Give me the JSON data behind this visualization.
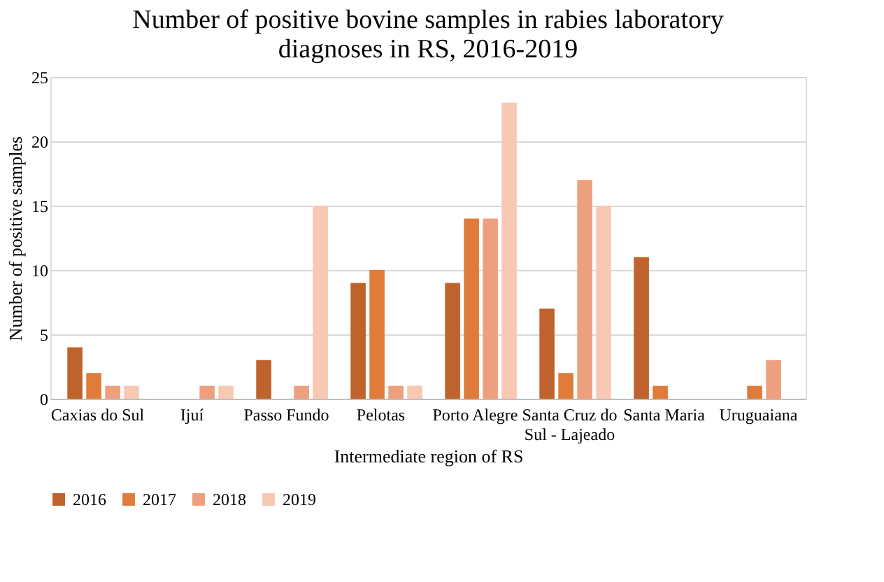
{
  "chart_data": {
    "type": "bar",
    "title": "Number of positive bovine samples in rabies laboratory diagnoses in RS, 2016-2019",
    "xlabel": "Intermediate region of RS",
    "ylabel": "Number of positive samples",
    "categories": [
      "Caxias do Sul",
      "Ijuí",
      "Passo Fundo",
      "Pelotas",
      "Porto Alegre",
      "Santa Cruz do Sul - Lajeado",
      "Santa Maria",
      "Uruguaiana"
    ],
    "series": [
      {
        "name": "2016",
        "color": "#c0622b",
        "values": [
          4,
          0,
          3,
          9,
          9,
          7,
          11,
          0
        ]
      },
      {
        "name": "2017",
        "color": "#e07b39",
        "values": [
          2,
          0,
          0,
          10,
          14,
          2,
          1,
          1
        ]
      },
      {
        "name": "2018",
        "color": "#eea07e",
        "values": [
          1,
          1,
          1,
          1,
          14,
          17,
          0,
          3
        ]
      },
      {
        "name": "2019",
        "color": "#f7c8b2",
        "values": [
          1,
          1,
          15,
          1,
          23,
          15,
          0,
          0
        ]
      }
    ],
    "ylim": [
      0,
      25
    ],
    "yticks": [
      0,
      5,
      10,
      15,
      20,
      25
    ],
    "grid": "y",
    "legend": "bottom"
  }
}
